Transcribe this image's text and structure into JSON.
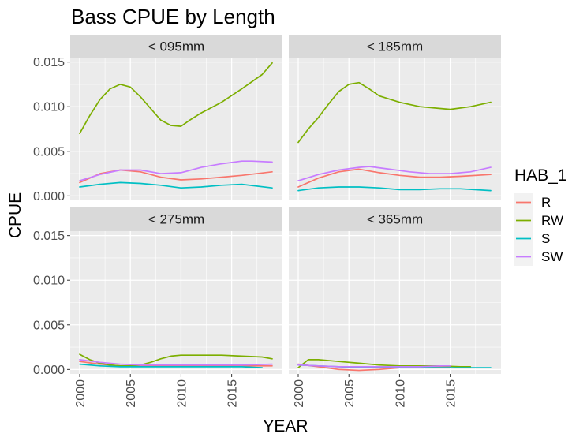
{
  "chart_data": {
    "type": "line",
    "title": "Bass CPUE by Length",
    "xlabel": "YEAR",
    "ylabel": "CPUE",
    "xlim": [
      2000,
      2019
    ],
    "ylim": [
      -0.0005,
      0.0155
    ],
    "x_ticks": [
      "2000",
      "2005",
      "2010",
      "2015"
    ],
    "y_ticks": [
      "0.000",
      "0.005",
      "0.010",
      "0.015"
    ],
    "grid": true,
    "legend": {
      "title": "HAB_1",
      "position": "right",
      "entries": [
        "R",
        "RW",
        "S",
        "SW"
      ]
    },
    "colors": {
      "R": "#F8766D",
      "RW": "#7CAE00",
      "S": "#00BFC4",
      "SW": "#C77CFF"
    },
    "panels": [
      {
        "label": "< 095mm",
        "series": [
          {
            "name": "R",
            "x": [
              2000,
              2002,
              2004,
              2006,
              2008,
              2010,
              2012,
              2014,
              2016,
              2019
            ],
            "y": [
              0.0015,
              0.0025,
              0.0029,
              0.0027,
              0.0021,
              0.0018,
              0.0019,
              0.0021,
              0.0023,
              0.0027
            ]
          },
          {
            "name": "RW",
            "x": [
              2000,
              2001,
              2002,
              2003,
              2004,
              2005,
              2006,
              2007,
              2008,
              2009,
              2010,
              2011,
              2012,
              2014,
              2016,
              2018,
              2019
            ],
            "y": [
              0.007,
              0.009,
              0.0108,
              0.012,
              0.0125,
              0.0122,
              0.0111,
              0.0098,
              0.0085,
              0.0079,
              0.0078,
              0.0086,
              0.0093,
              0.0105,
              0.012,
              0.0136,
              0.0149
            ]
          },
          {
            "name": "S",
            "x": [
              2000,
              2002,
              2004,
              2006,
              2008,
              2010,
              2012,
              2014,
              2016,
              2019
            ],
            "y": [
              0.001,
              0.0013,
              0.0015,
              0.0014,
              0.0012,
              0.0009,
              0.001,
              0.0012,
              0.0013,
              0.0009
            ]
          },
          {
            "name": "SW",
            "x": [
              2000,
              2002,
              2004,
              2006,
              2008,
              2010,
              2012,
              2014,
              2016,
              2017,
              2019
            ],
            "y": [
              0.0017,
              0.0024,
              0.0029,
              0.0029,
              0.0025,
              0.0026,
              0.0032,
              0.0036,
              0.0039,
              0.0039,
              0.0038
            ]
          }
        ]
      },
      {
        "label": "< 185mm",
        "series": [
          {
            "name": "R",
            "x": [
              2000,
              2002,
              2004,
              2006,
              2008,
              2010,
              2012,
              2014,
              2016,
              2019
            ],
            "y": [
              0.001,
              0.002,
              0.0027,
              0.003,
              0.0026,
              0.0023,
              0.0021,
              0.0021,
              0.0022,
              0.0024
            ]
          },
          {
            "name": "RW",
            "x": [
              2000,
              2001,
              2002,
              2003,
              2004,
              2005,
              2006,
              2007,
              2008,
              2010,
              2012,
              2014,
              2015,
              2017,
              2019
            ],
            "y": [
              0.006,
              0.0075,
              0.0088,
              0.0103,
              0.0117,
              0.0125,
              0.0127,
              0.012,
              0.0112,
              0.0105,
              0.01,
              0.0098,
              0.0097,
              0.01,
              0.0105
            ]
          },
          {
            "name": "S",
            "x": [
              2000,
              2002,
              2004,
              2006,
              2008,
              2010,
              2012,
              2014,
              2016,
              2019
            ],
            "y": [
              0.0006,
              0.0009,
              0.001,
              0.001,
              0.0009,
              0.0007,
              0.0007,
              0.0008,
              0.0008,
              0.0006
            ]
          },
          {
            "name": "SW",
            "x": [
              2000,
              2002,
              2004,
              2006,
              2007,
              2009,
              2011,
              2013,
              2015,
              2017,
              2019
            ],
            "y": [
              0.0017,
              0.0024,
              0.0029,
              0.0032,
              0.0033,
              0.003,
              0.0027,
              0.0025,
              0.0025,
              0.0027,
              0.0032
            ]
          }
        ]
      },
      {
        "label": "< 275mm",
        "series": [
          {
            "name": "R",
            "x": [
              2000,
              2002,
              2004,
              2006,
              2008,
              2010,
              2012,
              2014,
              2016,
              2019
            ],
            "y": [
              0.0009,
              0.0006,
              0.0004,
              0.0004,
              0.0004,
              0.0004,
              0.0004,
              0.0004,
              0.0004,
              0.0004
            ]
          },
          {
            "name": "RW",
            "x": [
              2000,
              2001,
              2002,
              2003,
              2004,
              2005,
              2006,
              2007,
              2008,
              2009,
              2010,
              2012,
              2014,
              2016,
              2018,
              2019
            ],
            "y": [
              0.0017,
              0.0011,
              0.0007,
              0.0005,
              0.0004,
              0.0004,
              0.0005,
              0.0008,
              0.0012,
              0.0015,
              0.0016,
              0.0016,
              0.0016,
              0.0015,
              0.0014,
              0.0012
            ]
          },
          {
            "name": "S",
            "x": [
              2000,
              2002,
              2004,
              2006,
              2008,
              2010,
              2012,
              2014,
              2016,
              2018
            ],
            "y": [
              0.0006,
              0.0004,
              0.0003,
              0.0003,
              0.0003,
              0.0003,
              0.0003,
              0.0003,
              0.0003,
              0.0002
            ]
          },
          {
            "name": "SW",
            "x": [
              2000,
              2002,
              2004,
              2006,
              2008,
              2010,
              2012,
              2014,
              2016,
              2019
            ],
            "y": [
              0.0011,
              0.0008,
              0.0006,
              0.0005,
              0.0005,
              0.0005,
              0.0005,
              0.0005,
              0.0005,
              0.0006
            ]
          }
        ]
      },
      {
        "label": "< 365mm",
        "series": [
          {
            "name": "R",
            "x": [
              2000,
              2002,
              2004,
              2006,
              2008,
              2010,
              2012,
              2014,
              2015
            ],
            "y": [
              0.0006,
              0.0003,
              0.0,
              -0.0001,
              0.0,
              0.0002,
              0.0003,
              0.0003,
              0.0003
            ]
          },
          {
            "name": "RW",
            "x": [
              2000,
              2001,
              2002,
              2004,
              2006,
              2008,
              2010,
              2012,
              2014,
              2016,
              2017
            ],
            "y": [
              0.0002,
              0.0011,
              0.0011,
              0.0009,
              0.0007,
              0.0005,
              0.0004,
              0.0004,
              0.0004,
              0.0003,
              0.0003
            ]
          },
          {
            "name": "S",
            "x": [
              2000,
              2002,
              2004,
              2006,
              2008,
              2010,
              2012,
              2014,
              2016,
              2019
            ],
            "y": [
              0.0005,
              0.0004,
              0.0003,
              0.0002,
              0.0002,
              0.0002,
              0.0002,
              0.0002,
              0.0002,
              0.0002
            ]
          },
          {
            "name": "SW",
            "x": [
              2000,
              2002,
              2004,
              2006,
              2008,
              2010,
              2012,
              2014,
              2015
            ],
            "y": [
              0.0005,
              0.0004,
              0.0003,
              0.0003,
              0.0003,
              0.0003,
              0.0003,
              0.0004,
              0.0004
            ]
          }
        ]
      }
    ]
  }
}
